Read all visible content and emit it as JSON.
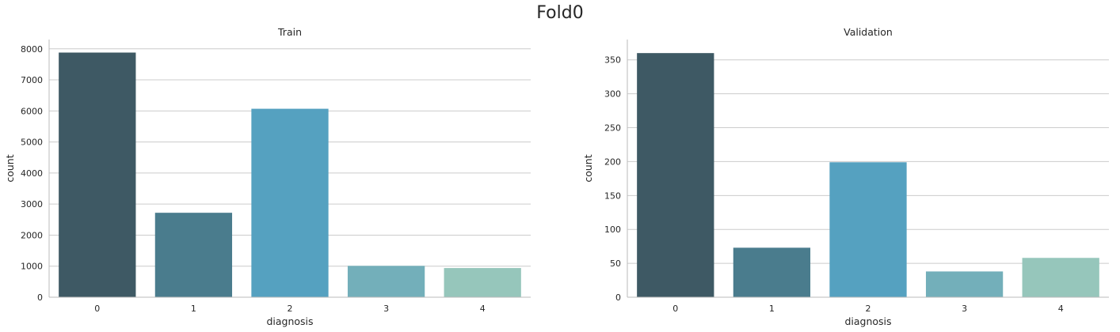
{
  "figure": {
    "title": "Fold0"
  },
  "chart_data": [
    {
      "type": "bar",
      "title": "Train",
      "xlabel": "diagnosis",
      "ylabel": "count",
      "categories": [
        "0",
        "1",
        "2",
        "3",
        "4"
      ],
      "values": [
        7880,
        2720,
        6070,
        1010,
        940
      ],
      "ylim": [
        0,
        8300
      ],
      "yticks": [
        0,
        1000,
        2000,
        3000,
        4000,
        5000,
        6000,
        7000,
        8000
      ],
      "colors": [
        "#3e5964",
        "#4a7c8d",
        "#55a1c0",
        "#73afba",
        "#96c6bb"
      ],
      "grid": "y",
      "legend": "none"
    },
    {
      "type": "bar",
      "title": "Validation",
      "xlabel": "diagnosis",
      "ylabel": "count",
      "categories": [
        "0",
        "1",
        "2",
        "3",
        "4"
      ],
      "values": [
        360,
        73,
        199,
        38,
        58
      ],
      "ylim": [
        0,
        380
      ],
      "yticks": [
        0,
        50,
        100,
        150,
        200,
        250,
        300,
        350
      ],
      "colors": [
        "#3e5964",
        "#4a7c8d",
        "#55a1c0",
        "#73afba",
        "#96c6bb"
      ],
      "grid": "y",
      "legend": "none"
    }
  ]
}
